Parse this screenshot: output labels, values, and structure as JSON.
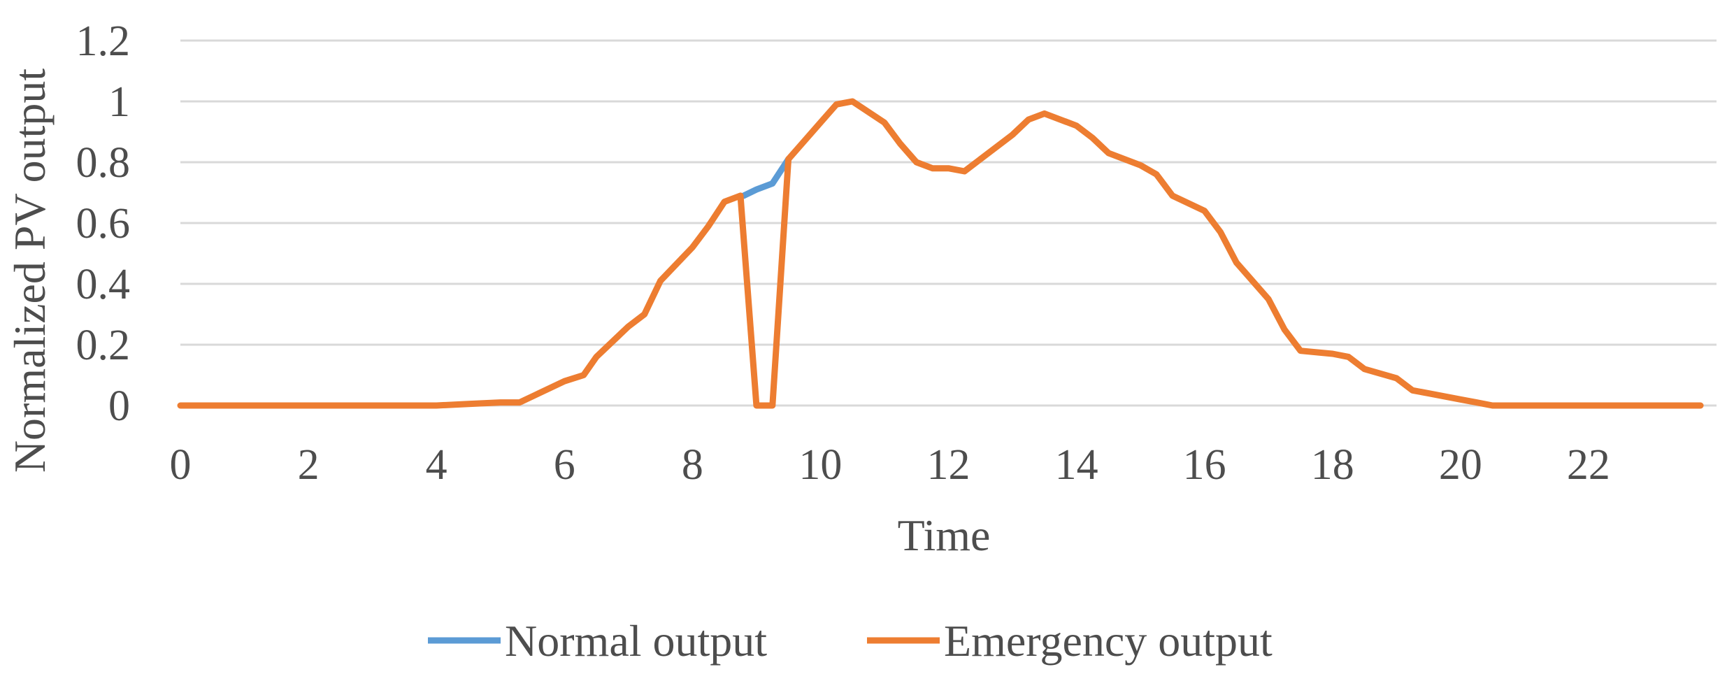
{
  "chart_data": {
    "type": "line",
    "title": "",
    "xlabel": "Time",
    "ylabel": "Normalized PV output",
    "xlim": [
      0,
      24
    ],
    "ylim": [
      0,
      1.2
    ],
    "x_ticks": [
      "0",
      "2",
      "4",
      "6",
      "8",
      "10",
      "12",
      "14",
      "16",
      "18",
      "20",
      "22"
    ],
    "y_ticks": [
      "0",
      "0.2",
      "0.4",
      "0.6",
      "0.8",
      "1",
      "1.2"
    ],
    "grid": true,
    "legend_position": "bottom",
    "colors": {
      "normal": "#5b9bd5",
      "emergency": "#ed7d31",
      "grid": "#d9d9d9"
    },
    "series": [
      {
        "name": "Normal output",
        "x": [
          8.8,
          9.0,
          9.25,
          9.5
        ],
        "y": [
          0.69,
          0.71,
          0.73,
          0.81
        ]
      },
      {
        "name": "Emergency output",
        "x": [
          0,
          4,
          4.5,
          5,
          5.3,
          5.6,
          6,
          6.3,
          6.5,
          7,
          7.25,
          7.5,
          8,
          8.25,
          8.5,
          8.75,
          9.0,
          9.25,
          9.5,
          10,
          10.25,
          10.5,
          11,
          11.25,
          11.5,
          11.75,
          12,
          12.25,
          12.5,
          13,
          13.25,
          13.5,
          14,
          14.25,
          14.5,
          15,
          15.25,
          15.5,
          16,
          16.25,
          16.5,
          17,
          17.25,
          17.5,
          18,
          18.25,
          18.5,
          19,
          19.25,
          19.5,
          20,
          20.25,
          20.5,
          21,
          22,
          23,
          23.75
        ],
        "y": [
          0,
          0,
          0.005,
          0.01,
          0.01,
          0.04,
          0.08,
          0.1,
          0.16,
          0.26,
          0.3,
          0.41,
          0.52,
          0.59,
          0.67,
          0.69,
          0,
          0,
          0.81,
          0.93,
          0.99,
          1.0,
          0.93,
          0.86,
          0.8,
          0.78,
          0.78,
          0.77,
          0.81,
          0.89,
          0.94,
          0.96,
          0.92,
          0.88,
          0.83,
          0.79,
          0.76,
          0.69,
          0.64,
          0.57,
          0.47,
          0.35,
          0.25,
          0.18,
          0.17,
          0.16,
          0.12,
          0.09,
          0.05,
          0.04,
          0.02,
          0.01,
          0.0,
          0.0,
          0.0,
          0.0,
          0.0
        ]
      }
    ]
  }
}
